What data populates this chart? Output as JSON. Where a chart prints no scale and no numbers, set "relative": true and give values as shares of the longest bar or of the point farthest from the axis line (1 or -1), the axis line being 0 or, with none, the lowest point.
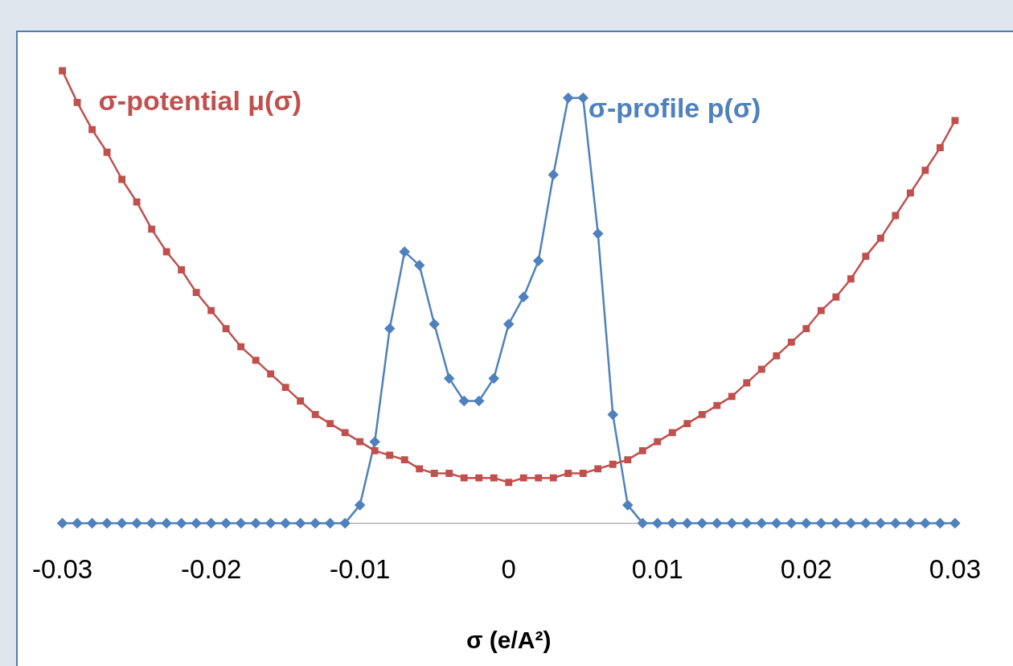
{
  "chart_data": {
    "type": "line",
    "relative": true,
    "xlabel": "σ (e/A²)",
    "x": [
      -0.03,
      -0.029,
      -0.028,
      -0.027,
      -0.026,
      -0.025,
      -0.024,
      -0.023,
      -0.022,
      -0.021,
      -0.02,
      -0.019,
      -0.018,
      -0.017,
      -0.016,
      -0.015,
      -0.014,
      -0.013,
      -0.012,
      -0.011,
      -0.01,
      -0.009,
      -0.008,
      -0.007,
      -0.006,
      -0.005,
      -0.004,
      -0.003,
      -0.002,
      -0.001,
      0,
      0.001,
      0.002,
      0.003,
      0.004,
      0.005,
      0.006,
      0.007,
      0.008,
      0.009,
      0.01,
      0.011,
      0.012,
      0.013,
      0.014,
      0.015,
      0.016,
      0.017,
      0.018,
      0.019,
      0.02,
      0.021,
      0.022,
      0.023,
      0.024,
      0.025,
      0.026,
      0.027,
      0.028,
      0.029,
      0.03
    ],
    "xlim": [
      -0.03,
      0.03
    ],
    "xticks": [
      -0.03,
      -0.02,
      -0.01,
      0,
      0.01,
      0.02,
      0.03
    ],
    "grid": false,
    "legend": false,
    "line_style": "solid",
    "series": [
      {
        "name": "σ-potential μ(σ)",
        "color": "#c0504d",
        "marker": "square",
        "values": [
          1.0,
          0.93,
          0.87,
          0.82,
          0.76,
          0.71,
          0.65,
          0.6,
          0.56,
          0.51,
          0.47,
          0.43,
          0.39,
          0.36,
          0.33,
          0.3,
          0.27,
          0.24,
          0.22,
          0.2,
          0.18,
          0.16,
          0.15,
          0.14,
          0.12,
          0.11,
          0.11,
          0.1,
          0.1,
          0.1,
          0.09,
          0.1,
          0.1,
          0.1,
          0.11,
          0.11,
          0.12,
          0.13,
          0.14,
          0.16,
          0.18,
          0.2,
          0.22,
          0.24,
          0.26,
          0.28,
          0.31,
          0.34,
          0.37,
          0.4,
          0.43,
          0.47,
          0.5,
          0.54,
          0.59,
          0.63,
          0.68,
          0.73,
          0.78,
          0.83,
          0.89
        ]
      },
      {
        "name": "σ-profile p(σ)",
        "color": "#4f81bd",
        "marker": "diamond",
        "values": [
          0,
          0,
          0,
          0,
          0,
          0,
          0,
          0,
          0,
          0,
          0,
          0,
          0,
          0,
          0,
          0,
          0,
          0,
          0,
          0,
          0.04,
          0.18,
          0.43,
          0.6,
          0.57,
          0.44,
          0.32,
          0.27,
          0.27,
          0.32,
          0.44,
          0.5,
          0.58,
          0.77,
          0.94,
          0.94,
          0.64,
          0.24,
          0.04,
          0,
          0,
          0,
          0,
          0,
          0,
          0,
          0,
          0,
          0,
          0,
          0,
          0,
          0,
          0,
          0,
          0,
          0,
          0,
          0,
          0,
          0
        ]
      }
    ]
  }
}
